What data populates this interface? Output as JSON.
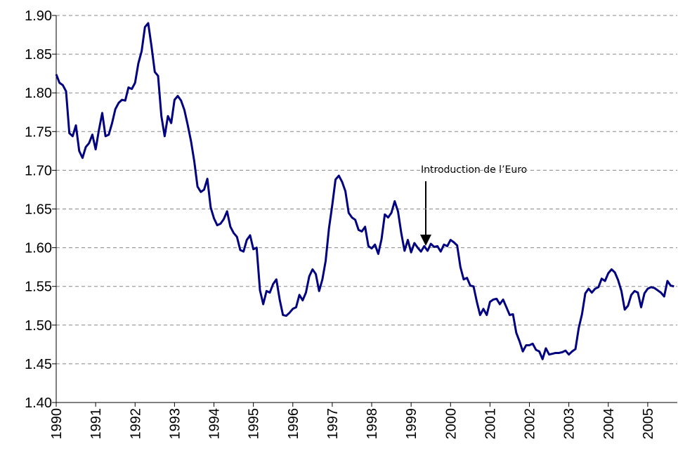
{
  "chart_data": {
    "type": "line",
    "annotation": "Introduction de l’Euro",
    "xlim": [
      1990,
      2005.75
    ],
    "xticks": [
      1990,
      1991,
      1992,
      1993,
      1994,
      1995,
      1996,
      1997,
      1998,
      1999,
      2000,
      2001,
      2002,
      2003,
      2004,
      2005
    ],
    "ylim": [
      1.4,
      1.9
    ],
    "yticks": [
      {
        "value": 1.4,
        "label": "1.40"
      },
      1.45,
      {
        "value": 1.5,
        "label": "1.50"
      },
      1.55,
      {
        "value": 1.6,
        "label": "1.60"
      },
      1.65,
      {
        "value": 1.7,
        "label": "1.70"
      },
      1.75,
      {
        "value": 1.8,
        "label": "1.80"
      },
      1.85,
      {
        "value": 1.9,
        "label": "1.90"
      }
    ],
    "grid": true,
    "x": [
      1990,
      1990.083,
      1990.167,
      1990.25,
      1990.333,
      1990.417,
      1990.5,
      1990.583,
      1990.667,
      1990.75,
      1990.833,
      1990.917,
      1991,
      1991.083,
      1991.167,
      1991.25,
      1991.333,
      1991.417,
      1991.5,
      1991.583,
      1991.667,
      1991.75,
      1991.833,
      1991.917,
      1992,
      1992.083,
      1992.167,
      1992.25,
      1992.333,
      1992.417,
      1992.5,
      1992.583,
      1992.667,
      1992.75,
      1992.833,
      1992.917,
      1993,
      1993.083,
      1993.167,
      1993.25,
      1993.333,
      1993.417,
      1993.5,
      1993.583,
      1993.667,
      1993.75,
      1993.833,
      1993.917,
      1994,
      1994.083,
      1994.167,
      1994.25,
      1994.333,
      1994.417,
      1994.5,
      1994.583,
      1994.667,
      1994.75,
      1994.833,
      1994.917,
      1995,
      1995.083,
      1995.167,
      1995.25,
      1995.333,
      1995.417,
      1995.5,
      1995.583,
      1995.667,
      1995.75,
      1995.833,
      1995.917,
      1996,
      1996.083,
      1996.167,
      1996.25,
      1996.333,
      1996.417,
      1996.5,
      1996.583,
      1996.667,
      1996.75,
      1996.833,
      1996.917,
      1997,
      1997.083,
      1997.167,
      1997.25,
      1997.333,
      1997.417,
      1997.5,
      1997.583,
      1997.667,
      1997.75,
      1997.833,
      1997.917,
      1998,
      1998.083,
      1998.167,
      1998.25,
      1998.333,
      1998.417,
      1998.5,
      1998.583,
      1998.667,
      1998.75,
      1998.833,
      1998.917,
      1999,
      1999.083,
      1999.167,
      1999.25,
      1999.333,
      1999.417,
      1999.5,
      1999.583,
      1999.667,
      1999.75,
      1999.833,
      1999.917,
      2000,
      2000.083,
      2000.167,
      2000.25,
      2000.333,
      2000.417,
      2000.5,
      2000.583,
      2000.667,
      2000.75,
      2000.833,
      2000.917,
      2001,
      2001.083,
      2001.167,
      2001.25,
      2001.333,
      2001.417,
      2001.5,
      2001.583,
      2001.667,
      2001.75,
      2001.833,
      2001.917,
      2002,
      2002.083,
      2002.167,
      2002.25,
      2002.333,
      2002.417,
      2002.5,
      2002.583,
      2002.667,
      2002.75,
      2002.833,
      2002.917,
      2003,
      2003.083,
      2003.167,
      2003.25,
      2003.333,
      2003.417,
      2003.5,
      2003.583,
      2003.667,
      2003.75,
      2003.833,
      2003.917,
      2004,
      2004.083,
      2004.167,
      2004.25,
      2004.333,
      2004.417,
      2004.5,
      2004.583,
      2004.667,
      2004.75,
      2004.833,
      2004.917,
      2005,
      2005.083,
      2005.167,
      2005.25,
      2005.333,
      2005.417,
      2005.5,
      2005.583,
      2005.667
    ],
    "series": [
      {
        "color": "#000080",
        "values": [
          1.824,
          1.813,
          1.81,
          1.802,
          1.748,
          1.744,
          1.758,
          1.725,
          1.716,
          1.73,
          1.735,
          1.746,
          1.727,
          1.752,
          1.774,
          1.744,
          1.746,
          1.761,
          1.779,
          1.787,
          1.791,
          1.79,
          1.807,
          1.805,
          1.813,
          1.838,
          1.854,
          1.885,
          1.89,
          1.86,
          1.827,
          1.822,
          1.77,
          1.744,
          1.77,
          1.761,
          1.791,
          1.796,
          1.79,
          1.778,
          1.759,
          1.738,
          1.712,
          1.679,
          1.672,
          1.675,
          1.689,
          1.652,
          1.638,
          1.629,
          1.631,
          1.637,
          1.647,
          1.627,
          1.619,
          1.614,
          1.597,
          1.595,
          1.61,
          1.616,
          1.598,
          1.6,
          1.545,
          1.527,
          1.544,
          1.542,
          1.553,
          1.559,
          1.533,
          1.513,
          1.512,
          1.516,
          1.521,
          1.523,
          1.539,
          1.532,
          1.542,
          1.563,
          1.572,
          1.566,
          1.544,
          1.559,
          1.583,
          1.625,
          1.655,
          1.688,
          1.693,
          1.685,
          1.673,
          1.645,
          1.639,
          1.636,
          1.623,
          1.621,
          1.627,
          1.602,
          1.599,
          1.604,
          1.592,
          1.611,
          1.643,
          1.639,
          1.645,
          1.66,
          1.647,
          1.619,
          1.596,
          1.61,
          1.594,
          1.606,
          1.6,
          1.595,
          1.602,
          1.596,
          1.605,
          1.601,
          1.602,
          1.595,
          1.604,
          1.602,
          1.61,
          1.607,
          1.603,
          1.575,
          1.559,
          1.561,
          1.551,
          1.55,
          1.53,
          1.513,
          1.521,
          1.513,
          1.53,
          1.533,
          1.534,
          1.527,
          1.533,
          1.523,
          1.513,
          1.514,
          1.49,
          1.479,
          1.466,
          1.474,
          1.474,
          1.476,
          1.468,
          1.466,
          1.456,
          1.47,
          1.462,
          1.463,
          1.464,
          1.464,
          1.465,
          1.467,
          1.462,
          1.466,
          1.469,
          1.496,
          1.514,
          1.541,
          1.547,
          1.542,
          1.547,
          1.549,
          1.56,
          1.557,
          1.567,
          1.572,
          1.568,
          1.558,
          1.544,
          1.52,
          1.525,
          1.539,
          1.544,
          1.542,
          1.523,
          1.541,
          1.547,
          1.549,
          1.548,
          1.545,
          1.542,
          1.537,
          1.557,
          1.551,
          1.55
        ]
      }
    ]
  }
}
